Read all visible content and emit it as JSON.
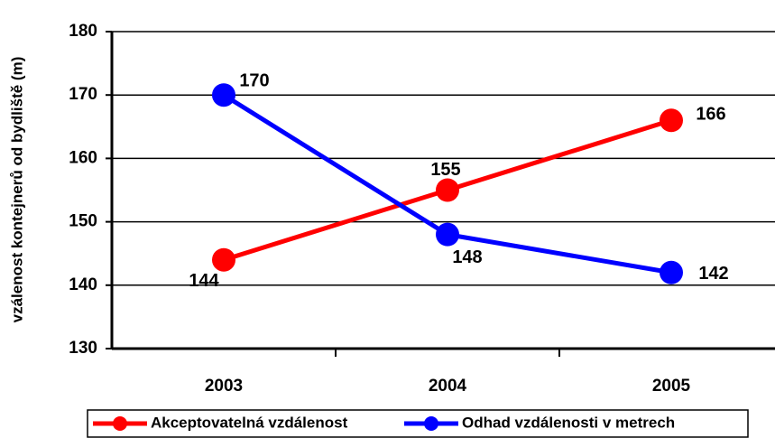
{
  "chart_data": {
    "type": "line",
    "y_label": "vzálenost kontejnerů od bydliště (m)",
    "categories": [
      "2003",
      "2004",
      "2005"
    ],
    "series": [
      {
        "name": "Akceptovatelná vzdálenost",
        "color": "#ff0000",
        "values": [
          144,
          155,
          166
        ]
      },
      {
        "name": "Odhad vzdálenosti v metrech",
        "color": "#0000ff",
        "values": [
          170,
          148,
          142
        ]
      }
    ],
    "ylim": [
      130,
      180
    ],
    "yticks": [
      130,
      140,
      150,
      160,
      170,
      180
    ],
    "grid": true,
    "legend": "bottom"
  }
}
